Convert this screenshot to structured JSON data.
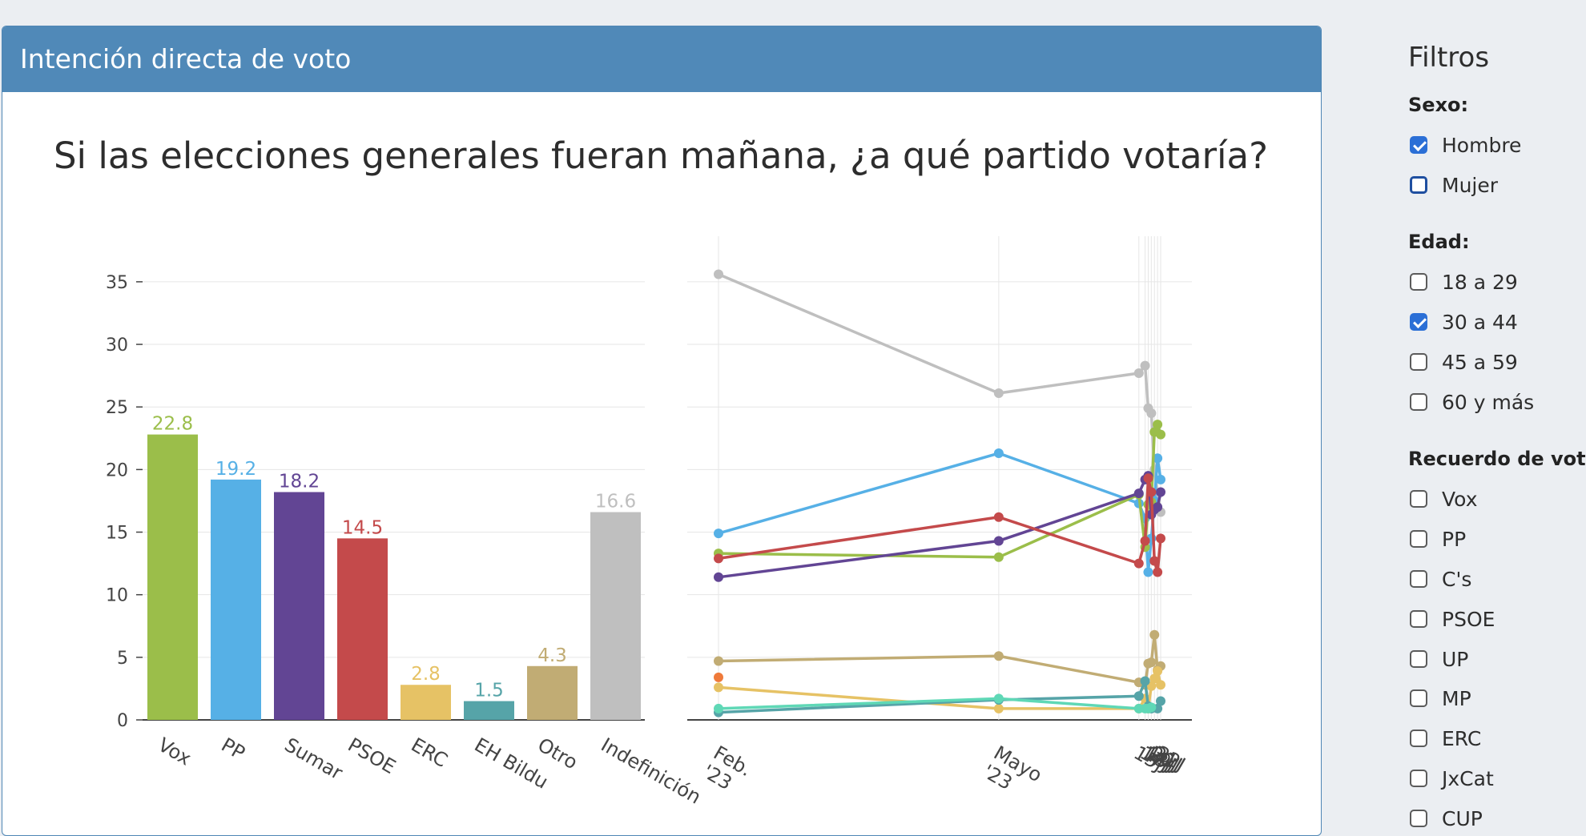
{
  "panel": {
    "header": "Intención directa de voto"
  },
  "chart_title": "Si las elecciones generales fueran mañana, ¿a qué partido votaría?",
  "colors": {
    "Vox": "#9bbe4a",
    "PP": "#56b0e6",
    "Sumar": "#624594",
    "PSOE": "#c44a4b",
    "ERC": "#e6c265",
    "EH Bildu": "#56a4a8",
    "Otro": "#c1ac74",
    "Indefinición": "#bfbfbf",
    "Extra": "#5fd8b6",
    "Extra2": "#ef7a3a"
  },
  "chart_data": [
    {
      "type": "bar",
      "categories": [
        "Vox",
        "PP",
        "Sumar",
        "PSOE",
        "ERC",
        "EH Bildu",
        "Otro",
        "Indefinición"
      ],
      "values": [
        22.8,
        19.2,
        18.2,
        14.5,
        2.8,
        1.5,
        4.3,
        16.6
      ],
      "value_labels": [
        "22.8",
        "19.2",
        "18.2",
        "14.5",
        "2.8",
        "1.5",
        "4.3",
        "16.6"
      ],
      "yticks": [
        "0",
        "5",
        "10",
        "15",
        "20",
        "25",
        "30",
        "35"
      ],
      "ylim": [
        0,
        38
      ],
      "grid": true
    },
    {
      "type": "line",
      "x": [
        "Feb. '23",
        "Mayo '23",
        "15J",
        "17J",
        "18J",
        "19J",
        "20J",
        "21J",
        "22J"
      ],
      "x_positions_days": [
        0,
        90,
        135,
        137,
        138,
        139,
        140,
        141,
        142
      ],
      "ylim": [
        0,
        38
      ],
      "grid": true,
      "series": [
        {
          "name": "Indefinición",
          "color_key": "Indefinición",
          "points": [
            [
              "Feb. '23",
              35.6
            ],
            [
              "Mayo '23",
              26.1
            ],
            [
              "15J",
              27.7
            ],
            [
              "17J",
              28.3
            ],
            [
              "18J",
              24.9
            ],
            [
              "19J",
              24.5
            ],
            [
              "20J",
              20.0
            ],
            [
              "21J",
              18.0
            ],
            [
              "22J",
              16.6
            ]
          ]
        },
        {
          "name": "PP",
          "color_key": "PP",
          "points": [
            [
              "Feb. '23",
              14.9
            ],
            [
              "Mayo '23",
              21.3
            ],
            [
              "15J",
              17.3
            ],
            [
              "17J",
              16.1
            ],
            [
              "18J",
              11.8
            ],
            [
              "19J",
              14.5
            ],
            [
              "20J",
              17.5
            ],
            [
              "21J",
              20.9
            ],
            [
              "22J",
              19.2
            ]
          ]
        },
        {
          "name": "Vox",
          "color_key": "Vox",
          "points": [
            [
              "Feb. '23",
              13.3
            ],
            [
              "Mayo '23",
              13.0
            ],
            [
              "15J",
              18.0
            ],
            [
              "17J",
              13.8
            ],
            [
              "18J",
              17.2
            ],
            [
              "19J",
              17.4
            ],
            [
              "20J",
              23.0
            ],
            [
              "21J",
              23.6
            ],
            [
              "22J",
              22.8
            ]
          ]
        },
        {
          "name": "Sumar",
          "color_key": "Sumar",
          "points": [
            [
              "Feb. '23",
              11.4
            ],
            [
              "Mayo '23",
              14.3
            ],
            [
              "15J",
              18.1
            ],
            [
              "17J",
              19.2
            ],
            [
              "18J",
              19.5
            ],
            [
              "19J",
              16.4
            ],
            [
              "20J",
              16.8
            ],
            [
              "21J",
              17.0
            ],
            [
              "22J",
              18.2
            ]
          ]
        },
        {
          "name": "PSOE",
          "color_key": "PSOE",
          "points": [
            [
              "Feb. '23",
              12.9
            ],
            [
              "Mayo '23",
              16.2
            ],
            [
              "15J",
              12.5
            ],
            [
              "17J",
              14.3
            ],
            [
              "18J",
              19.3
            ],
            [
              "19J",
              18.2
            ],
            [
              "20J",
              12.7
            ],
            [
              "21J",
              11.8
            ],
            [
              "22J",
              14.5
            ]
          ]
        },
        {
          "name": "Otro",
          "color_key": "Otro",
          "points": [
            [
              "Feb. '23",
              4.7
            ],
            [
              "Mayo '23",
              5.1
            ],
            [
              "15J",
              3.0
            ],
            [
              "17J",
              2.8
            ],
            [
              "18J",
              4.5
            ],
            [
              "19J",
              4.6
            ],
            [
              "20J",
              6.8
            ],
            [
              "21J",
              4.0
            ],
            [
              "22J",
              4.3
            ]
          ]
        },
        {
          "name": "ERC",
          "color_key": "ERC",
          "points": [
            [
              "Feb. '23",
              2.6
            ],
            [
              "Mayo '23",
              0.9
            ],
            [
              "15J",
              0.9
            ],
            [
              "17J",
              1.7
            ],
            [
              "18J",
              0.9
            ],
            [
              "19J",
              2.7
            ],
            [
              "20J",
              3.3
            ],
            [
              "21J",
              3.9
            ],
            [
              "22J",
              2.8
            ]
          ]
        },
        {
          "name": "EH Bildu",
          "color_key": "EH Bildu",
          "points": [
            [
              "Feb. '23",
              0.6
            ],
            [
              "Mayo '23",
              1.6
            ],
            [
              "15J",
              1.9
            ],
            [
              "17J",
              3.1
            ],
            [
              "18J",
              1.1
            ],
            [
              "19J",
              0.9
            ],
            [
              "21J",
              0.9
            ],
            [
              "22J",
              1.5
            ]
          ]
        },
        {
          "name": "",
          "color_key": "Extra",
          "points": [
            [
              "Feb. '23",
              0.9
            ],
            [
              "Mayo '23",
              1.7
            ],
            [
              "15J",
              0.9
            ],
            [
              "17J",
              0.9
            ],
            [
              "18J",
              0.9
            ],
            [
              "19J",
              1.0
            ]
          ]
        },
        {
          "name": "",
          "color_key": "Extra2",
          "points": [
            [
              "Feb. '23",
              3.4
            ]
          ]
        }
      ]
    }
  ],
  "sidebar": {
    "title": "Filtros",
    "groups": [
      {
        "heading": "Sexo:",
        "options": [
          {
            "label": "Hombre",
            "checked": true
          },
          {
            "label": "Mujer",
            "checked": false,
            "focused": true
          }
        ]
      },
      {
        "heading": "Edad:",
        "options": [
          {
            "label": "18 a 29",
            "checked": false
          },
          {
            "label": "30 a 44",
            "checked": true
          },
          {
            "label": "45 a 59",
            "checked": false
          },
          {
            "label": "60 y más",
            "checked": false
          }
        ]
      },
      {
        "heading": "Recuerdo de voto:",
        "options": [
          {
            "label": "Vox",
            "checked": false
          },
          {
            "label": "PP",
            "checked": false
          },
          {
            "label": "C's",
            "checked": false
          },
          {
            "label": "PSOE",
            "checked": false
          },
          {
            "label": "UP",
            "checked": false
          },
          {
            "label": "MP",
            "checked": false
          },
          {
            "label": "ERC",
            "checked": false
          },
          {
            "label": "JxCat",
            "checked": false
          },
          {
            "label": "CUP",
            "checked": false
          }
        ]
      }
    ]
  }
}
